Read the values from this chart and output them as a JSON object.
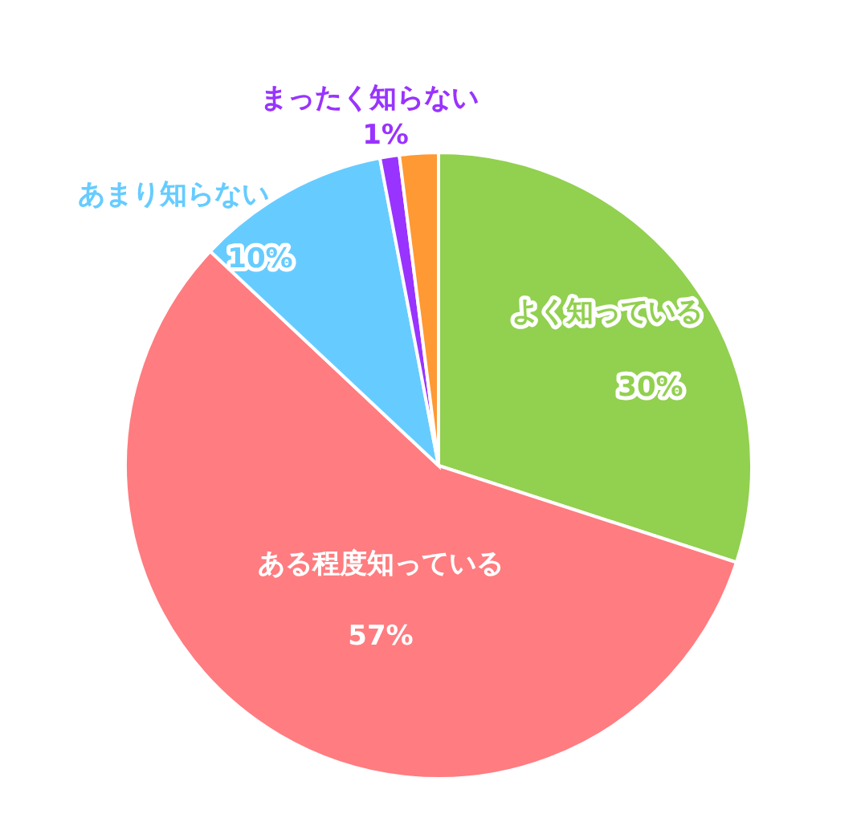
{
  "chart_data": {
    "type": "pie",
    "categories": [
      "よく知っている",
      "ある程度知っている",
      "あまり知らない",
      "まったく知らない",
      null
    ],
    "values": [
      30,
      57,
      10,
      1,
      2
    ],
    "colors": [
      "#92d050",
      "#ff7c80",
      "#66ccff",
      "#9933ff",
      "#ff9933"
    ],
    "value_labels": [
      "30%",
      "57%",
      "10%",
      "1%",
      null
    ]
  }
}
